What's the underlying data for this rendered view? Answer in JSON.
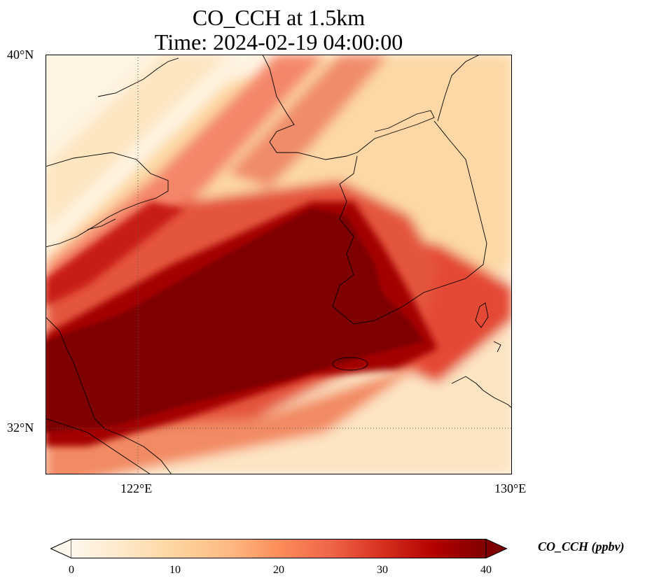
{
  "title_line1": "CO_CCH at 1.5km",
  "title_line2": "Time: 2024-02-19 04:00:00",
  "lat_ticks": [
    "40°N",
    "32°N"
  ],
  "lon_ticks": [
    "122°E",
    "130°E"
  ],
  "extent": {
    "lon": [
      120,
      130
    ],
    "lat": [
      31,
      40
    ]
  },
  "colorbar": {
    "label": "CO_CCH (ppbv)",
    "ticks": [
      "0",
      "10",
      "20",
      "30",
      "40"
    ],
    "min": 0,
    "max": 40,
    "extend": "both",
    "colormap": "OrRd",
    "colors": [
      "#fff7ec",
      "#fee8c8",
      "#fdd49e",
      "#fdbb84",
      "#fc8d59",
      "#ef6548",
      "#d7301f",
      "#b30000",
      "#7f0000"
    ]
  },
  "gridlines": {
    "lon": 122,
    "lat": 32,
    "style": "dotted"
  },
  "features": [
    "coastlines",
    "Korean peninsula",
    "Jeju island",
    "Shandong peninsula",
    "Liaodong peninsula",
    "Yangtze estuary"
  ]
}
